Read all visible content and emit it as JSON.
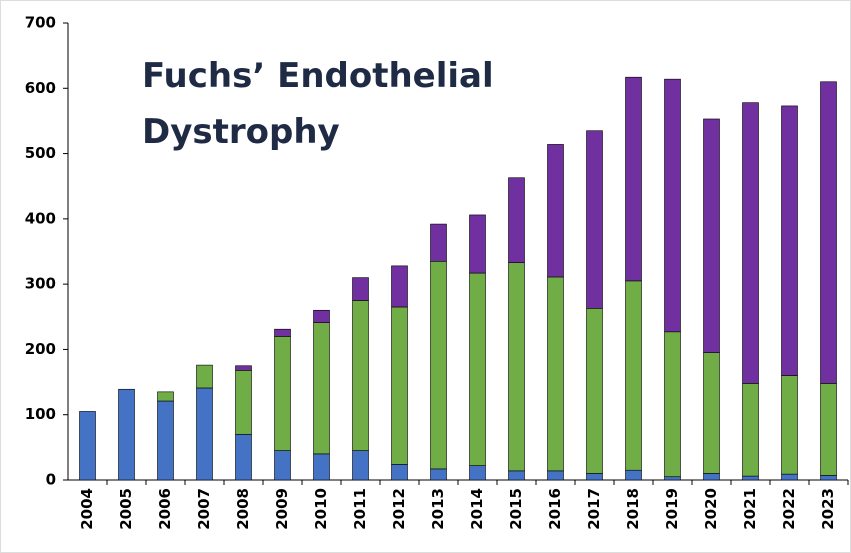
{
  "chart_data": {
    "type": "stacked_bar",
    "title": "Fuchs’ Endothelial Dystrophy",
    "categories": [
      "2004",
      "2005",
      "2006",
      "2007",
      "2008",
      "2009",
      "2010",
      "2011",
      "2012",
      "2013",
      "2014",
      "2015",
      "2016",
      "2017",
      "2018",
      "2019",
      "2020",
      "2021",
      "2022",
      "2023"
    ],
    "series": [
      {
        "color": "#4472c4",
        "values": [
          105,
          139,
          121,
          141,
          70,
          45,
          40,
          45,
          24,
          17,
          22,
          14,
          14,
          10,
          15,
          5,
          10,
          6,
          9,
          7
        ]
      },
      {
        "color": "#70ad47",
        "values": [
          0,
          0,
          14,
          35,
          98,
          175,
          201,
          230,
          241,
          318,
          295,
          319,
          297,
          253,
          290,
          222,
          185,
          142,
          151,
          141
        ]
      },
      {
        "color": "#7030a0",
        "values": [
          0,
          0,
          0,
          0,
          7,
          11,
          19,
          35,
          63,
          57,
          89,
          130,
          203,
          272,
          312,
          387,
          358,
          430,
          413,
          462
        ]
      }
    ],
    "ylim": [
      0,
      700
    ],
    "yticks": [
      0,
      100,
      200,
      300,
      400,
      500,
      600,
      700
    ],
    "grid": false
  }
}
